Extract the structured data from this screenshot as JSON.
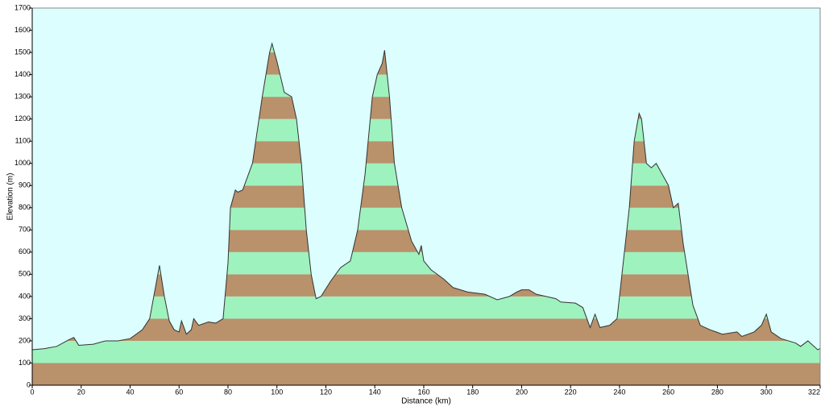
{
  "chart_data": {
    "type": "area",
    "xlabel": "Distance   (km)",
    "ylabel": "Elevation (m)",
    "x": [
      0,
      5,
      10,
      15,
      17,
      19,
      25,
      30,
      35,
      40,
      45,
      48,
      50,
      52,
      54,
      56,
      58,
      60,
      61,
      63,
      65,
      66,
      68,
      72,
      75,
      78,
      80,
      81,
      83,
      84,
      86,
      90,
      94,
      97,
      98,
      100,
      103,
      106,
      108,
      110,
      112,
      114,
      116,
      118,
      122,
      126,
      130,
      133,
      136,
      139,
      141,
      143,
      144,
      146,
      148,
      151,
      155,
      158,
      159,
      160,
      163,
      168,
      172,
      178,
      185,
      190,
      195,
      198,
      200,
      203,
      206,
      210,
      214,
      216,
      222,
      225,
      228,
      230,
      232,
      236,
      239,
      241,
      244,
      246,
      248,
      249,
      251,
      253,
      255,
      258,
      260,
      262,
      264,
      266,
      268,
      270,
      273,
      277,
      282,
      288,
      290,
      295,
      298,
      300,
      302,
      306,
      312,
      314,
      317,
      319,
      321,
      322
    ],
    "values": [
      160,
      165,
      175,
      205,
      215,
      180,
      185,
      200,
      200,
      210,
      250,
      300,
      420,
      540,
      400,
      290,
      250,
      240,
      290,
      230,
      250,
      300,
      270,
      285,
      280,
      300,
      550,
      800,
      880,
      870,
      880,
      1000,
      1300,
      1500,
      1540,
      1460,
      1320,
      1300,
      1200,
      1000,
      700,
      500,
      390,
      400,
      470,
      530,
      560,
      700,
      950,
      1300,
      1400,
      1450,
      1510,
      1300,
      1000,
      800,
      650,
      590,
      630,
      560,
      520,
      480,
      440,
      420,
      410,
      385,
      400,
      420,
      430,
      430,
      410,
      400,
      390,
      375,
      370,
      350,
      260,
      320,
      260,
      270,
      300,
      500,
      800,
      1100,
      1225,
      1200,
      1000,
      980,
      1000,
      940,
      900,
      800,
      820,
      640,
      500,
      360,
      270,
      250,
      230,
      240,
      220,
      240,
      270,
      320,
      240,
      210,
      190,
      175,
      200,
      180,
      160,
      165
    ],
    "xlim": [
      0,
      322
    ],
    "ylim": [
      0,
      1700
    ],
    "xticks": [
      0,
      20,
      40,
      60,
      80,
      100,
      120,
      140,
      160,
      180,
      200,
      220,
      240,
      260,
      280,
      300,
      322
    ],
    "yticks": [
      0,
      100,
      200,
      300,
      400,
      500,
      600,
      700,
      800,
      900,
      1000,
      1100,
      1200,
      1300,
      1400,
      1500,
      1600,
      1700
    ],
    "band_colors": [
      "#b9916b",
      "#9ef2be"
    ],
    "line_color": "#333333",
    "background": "#dcfefe"
  }
}
